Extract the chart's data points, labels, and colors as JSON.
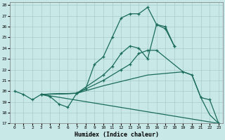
{
  "xlabel": "Humidex (Indice chaleur)",
  "bg_color": "#c8e8e8",
  "line_color": "#1a6b5a",
  "xlim": [
    -0.5,
    23.5
  ],
  "ylim": [
    17,
    28.3
  ],
  "xticks": [
    0,
    1,
    2,
    3,
    4,
    5,
    6,
    7,
    8,
    9,
    10,
    11,
    12,
    13,
    14,
    15,
    16,
    17,
    18,
    19,
    20,
    21,
    22,
    23
  ],
  "yticks": [
    17,
    18,
    19,
    20,
    21,
    22,
    23,
    24,
    25,
    26,
    27,
    28
  ],
  "line1": {
    "x": [
      0,
      1,
      2,
      3,
      4,
      5,
      6,
      7,
      8,
      9,
      10,
      11,
      12,
      13,
      14,
      15,
      16,
      17,
      18
    ],
    "y": [
      20.0,
      19.7,
      19.2,
      19.7,
      19.5,
      18.8,
      18.5,
      19.8,
      20.2,
      22.5,
      23.2,
      25.0,
      26.8,
      27.2,
      27.2,
      27.8,
      26.2,
      25.8,
      24.2
    ]
  },
  "line2": {
    "x": [
      3,
      7,
      10,
      11,
      12,
      13,
      14,
      15,
      16,
      17,
      18
    ],
    "y": [
      19.7,
      19.8,
      21.5,
      22.3,
      23.5,
      24.2,
      24.0,
      23.0,
      26.2,
      26.0,
      24.2
    ]
  },
  "line3": {
    "x": [
      3,
      7,
      10,
      12,
      13,
      14,
      15,
      16,
      19,
      20,
      21,
      22,
      23
    ],
    "y": [
      19.7,
      19.8,
      21.0,
      22.0,
      22.5,
      23.5,
      23.8,
      23.8,
      21.8,
      21.5,
      19.4,
      19.2,
      17.0
    ]
  },
  "line4": {
    "x": [
      3,
      23
    ],
    "y": [
      19.7,
      17.0
    ]
  },
  "line5": {
    "x": [
      3,
      7,
      10,
      15,
      19,
      20,
      21,
      22,
      23
    ],
    "y": [
      19.7,
      19.8,
      20.5,
      21.5,
      21.8,
      21.5,
      19.4,
      17.8,
      17.0
    ]
  }
}
